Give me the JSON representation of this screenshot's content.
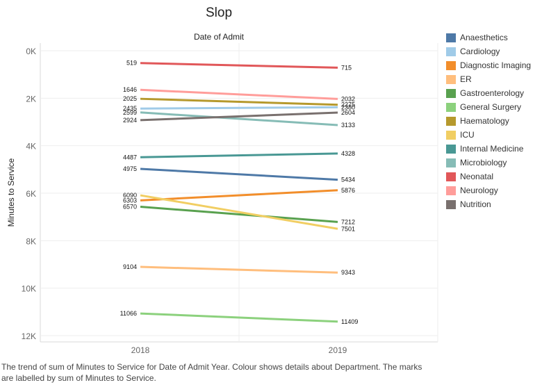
{
  "chart_data": {
    "type": "line",
    "title": "Slop",
    "column_header": "Date of Admit",
    "xlabel": "",
    "ylabel": "Minutes to Service",
    "x": [
      "2018",
      "2019"
    ],
    "y_reversed": true,
    "ylim": [
      0,
      12000
    ],
    "y_ticks": [
      0,
      2000,
      4000,
      6000,
      8000,
      10000,
      12000
    ],
    "y_tick_labels": [
      "0K",
      "2K",
      "4K",
      "6K",
      "8K",
      "10K",
      "12K"
    ],
    "grid": true,
    "legend_position": "right",
    "series": [
      {
        "name": "Anaesthetics",
        "color": "#4e79a7",
        "values": [
          4975,
          5434
        ]
      },
      {
        "name": "Cardiology",
        "color": "#a0cbe8",
        "values": [
          2435,
          2380
        ]
      },
      {
        "name": "Diagnostic Imaging",
        "color": "#f28e2b",
        "values": [
          6303,
          5876
        ]
      },
      {
        "name": "ER",
        "color": "#ffbe7d",
        "values": [
          9104,
          9343
        ]
      },
      {
        "name": "Gastroenterology",
        "color": "#59a14f",
        "values": [
          6570,
          7212
        ]
      },
      {
        "name": "General Surgery",
        "color": "#8cd17d",
        "values": [
          11066,
          11409
        ]
      },
      {
        "name": "Haematology",
        "color": "#b6992d",
        "values": [
          2025,
          2275
        ]
      },
      {
        "name": "ICU",
        "color": "#f1ce63",
        "values": [
          6090,
          7501
        ]
      },
      {
        "name": "Internal Medicine",
        "color": "#499894",
        "values": [
          4487,
          4328
        ]
      },
      {
        "name": "Microbiology",
        "color": "#86bcb6",
        "values": [
          2599,
          3133
        ]
      },
      {
        "name": "Neonatal",
        "color": "#e15759",
        "values": [
          519,
          715
        ]
      },
      {
        "name": "Neurology",
        "color": "#ff9d9a",
        "values": [
          1646,
          2032
        ]
      },
      {
        "name": "Nutrition",
        "color": "#79706e",
        "values": [
          2924,
          2604
        ]
      }
    ],
    "caption": "The trend of sum of Minutes to Service for Date of Admit Year. Colour shows details about Department. The marks are labelled by sum of Minutes to Service."
  }
}
